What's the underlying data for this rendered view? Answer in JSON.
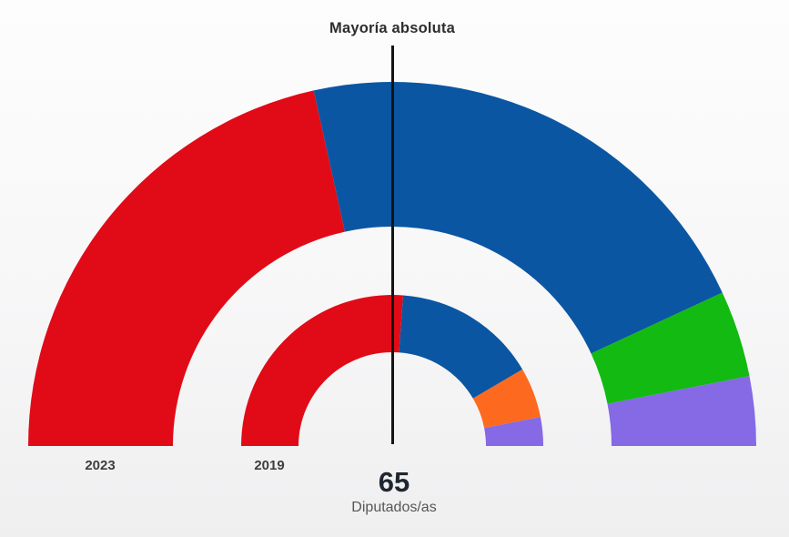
{
  "annotation": {
    "majority_label": "Mayoría absoluta"
  },
  "footer": {
    "total_value": "65",
    "total_label": "Diputados/as"
  },
  "colors": {
    "red": "#e00b17",
    "blue": "#0b56a2",
    "green": "#12ba12",
    "orange": "#fd6a1f",
    "purple": "#8569e5",
    "majority_line": "#141414"
  },
  "chart_data": {
    "type": "pie",
    "subtype": "hemicycle-double-ring",
    "title": "Mayoría absoluta",
    "total_seats": 65,
    "majority_line": {
      "label": "Mayoría absoluta",
      "at_seats": 32.5
    },
    "center_value": "65",
    "center_label": "Diputados/as",
    "legend_position": "none",
    "rings": [
      {
        "label": "2023",
        "position": "outer",
        "segments": [
          {
            "color_name": "red",
            "color": "#e00b17",
            "seats": 28
          },
          {
            "color_name": "blue",
            "color": "#0b56a2",
            "seats": 28
          },
          {
            "color_name": "green",
            "color": "#12ba12",
            "seats": 5
          },
          {
            "color_name": "purple",
            "color": "#8569e5",
            "seats": 4
          }
        ]
      },
      {
        "label": "2019",
        "position": "inner",
        "segments": [
          {
            "color_name": "red",
            "color": "#e00b17",
            "seats": 34
          },
          {
            "color_name": "blue",
            "color": "#0b56a2",
            "seats": 20
          },
          {
            "color_name": "orange",
            "color": "#fd6a1f",
            "seats": 7
          },
          {
            "color_name": "purple",
            "color": "#8569e5",
            "seats": 4
          }
        ]
      }
    ]
  }
}
